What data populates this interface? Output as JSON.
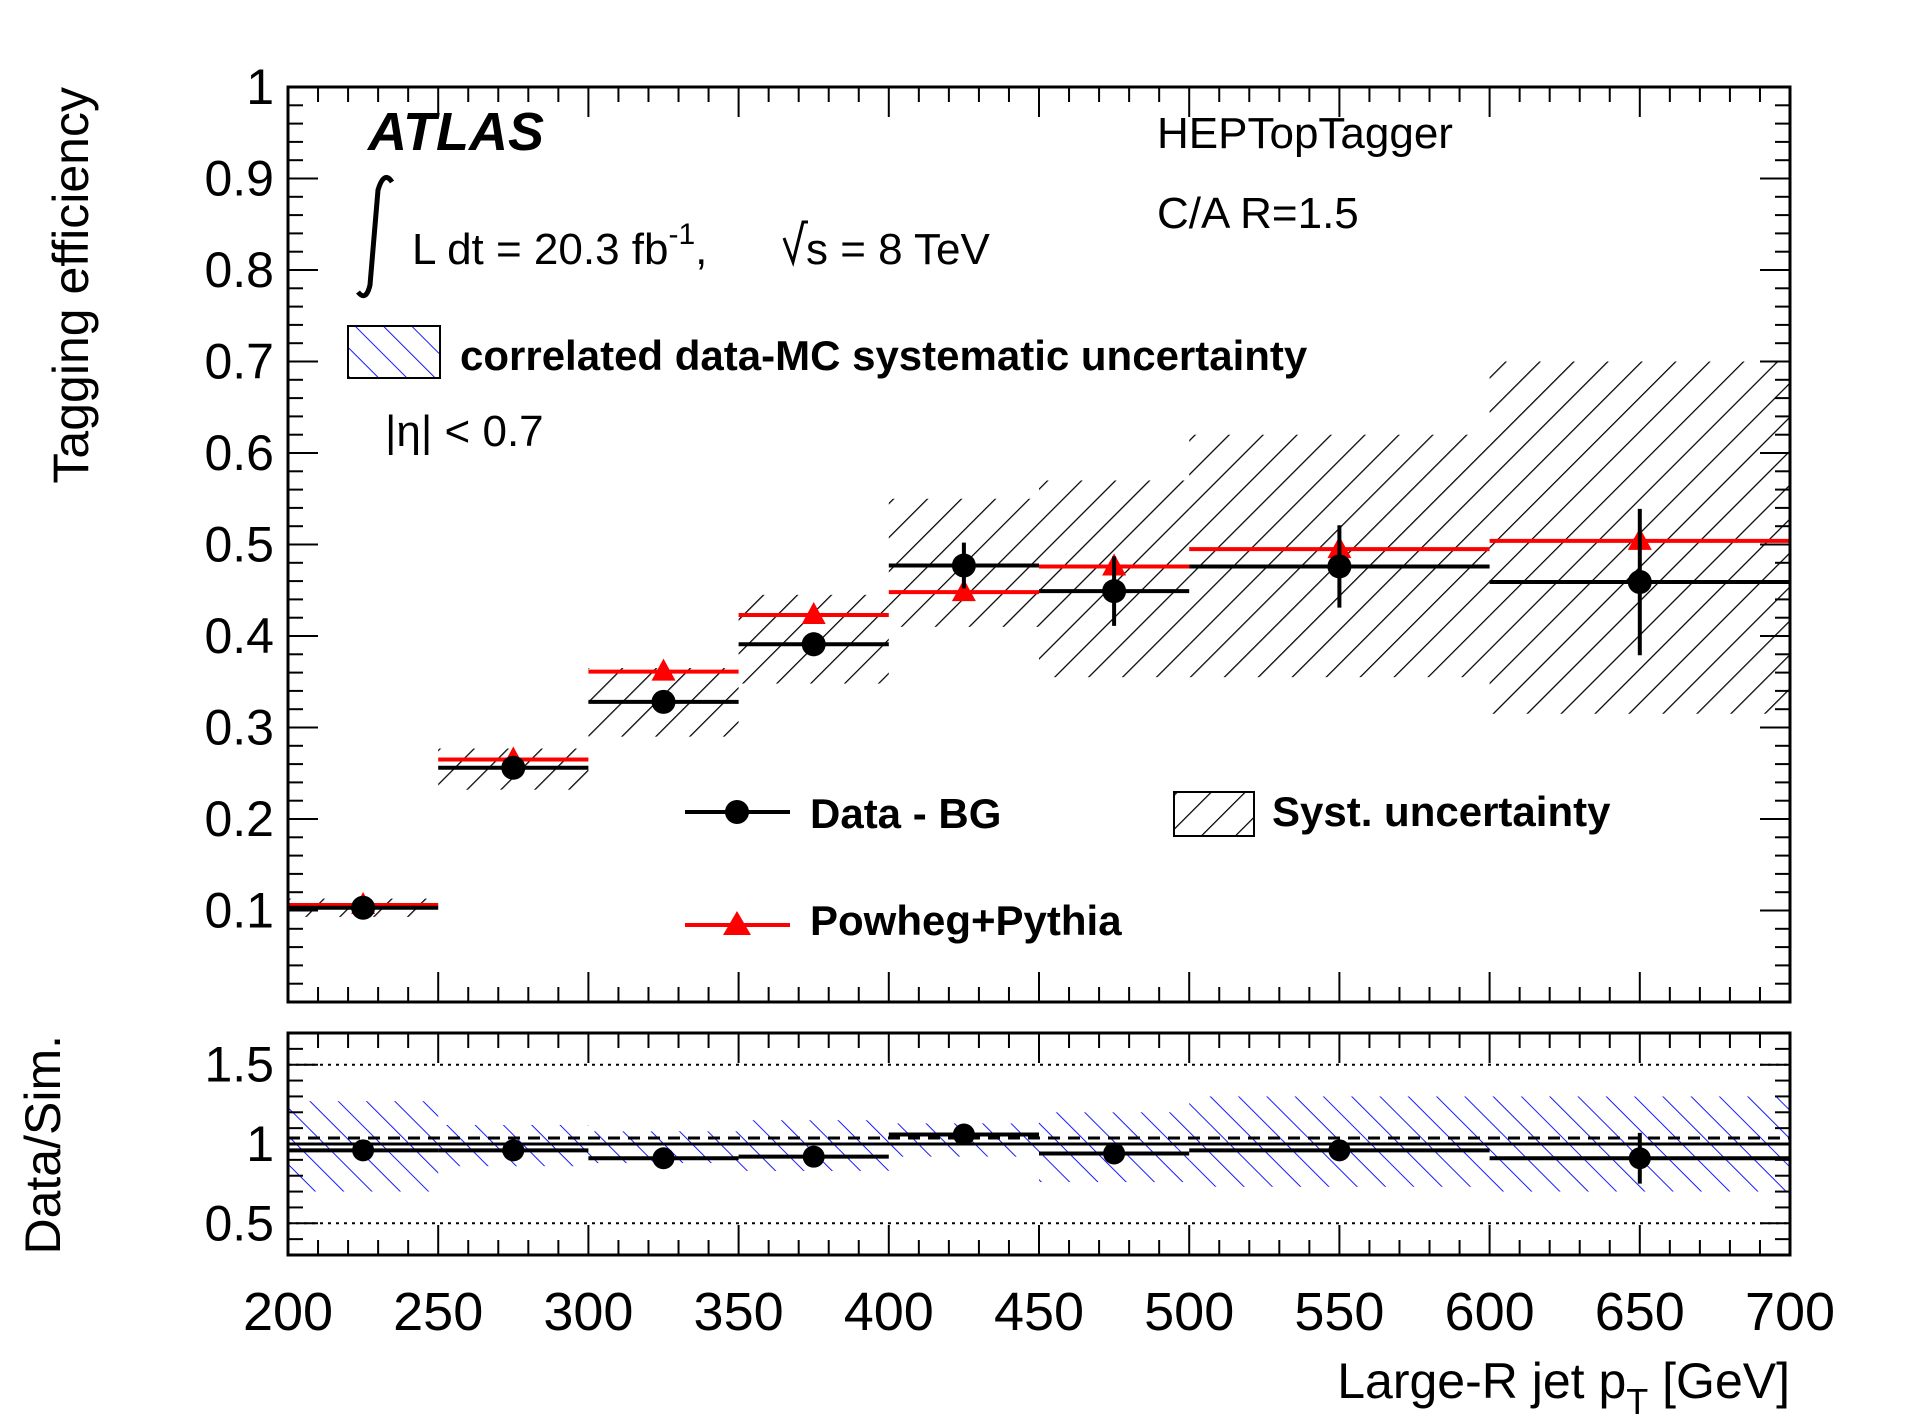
{
  "chart_data": [
    {
      "type": "line",
      "panel": "main",
      "xlabel_main": "Large-R jet p",
      "xlabel_sub": "T",
      "xlabel_unit": " [GeV]",
      "ylabel": "Tagging efficiency",
      "xlim": [
        200,
        700
      ],
      "ylim": [
        0,
        1
      ],
      "x_ticks": [
        "200",
        "250",
        "300",
        "350",
        "400",
        "450",
        "500",
        "550",
        "600",
        "650",
        "700"
      ],
      "y_ticks": [
        "0.1",
        "0.2",
        "0.3",
        "0.4",
        "0.5",
        "0.6",
        "0.7",
        "0.8",
        "0.9",
        "1"
      ],
      "bins": [
        [
          200,
          250
        ],
        [
          250,
          300
        ],
        [
          300,
          350
        ],
        [
          350,
          400
        ],
        [
          400,
          450
        ],
        [
          450,
          500
        ],
        [
          500,
          600
        ],
        [
          600,
          700
        ]
      ],
      "centers": [
        225,
        275,
        325,
        375,
        425,
        475,
        550,
        650
      ],
      "series": [
        {
          "name": "Data - BG",
          "color": "#000000",
          "marker": "circle",
          "values": [
            0.103,
            0.256,
            0.328,
            0.391,
            0.477,
            0.449,
            0.476,
            0.459
          ],
          "stat_err": [
            0.004,
            0.008,
            0.01,
            0.013,
            0.025,
            0.038,
            0.045,
            0.08
          ]
        },
        {
          "name": "Powheg+Pythia",
          "color": "#ff0000",
          "marker": "triangle",
          "values": [
            0.106,
            0.265,
            0.361,
            0.423,
            0.448,
            0.476,
            0.495,
            0.504
          ]
        }
      ],
      "syst_band": {
        "name": "Syst. uncertainty",
        "low": [
          0.093,
          0.232,
          0.29,
          0.348,
          0.41,
          0.355,
          0.355,
          0.315
        ],
        "high": [
          0.113,
          0.277,
          0.365,
          0.445,
          0.55,
          0.57,
          0.62,
          0.7
        ]
      },
      "legend": [
        "Data - BG",
        "Syst. uncertainty",
        "Powheg+Pythia"
      ]
    },
    {
      "type": "line",
      "panel": "ratio",
      "ylabel": "Data/Sim.",
      "xlim": [
        200,
        700
      ],
      "ylim": [
        0.3,
        1.7
      ],
      "y_ticks": [
        "0.5",
        "1",
        "1.5"
      ],
      "reference_lines": [
        0.5,
        1,
        1.5
      ],
      "bins": [
        [
          200,
          250
        ],
        [
          250,
          300
        ],
        [
          300,
          350
        ],
        [
          350,
          400
        ],
        [
          400,
          450
        ],
        [
          450,
          500
        ],
        [
          500,
          600
        ],
        [
          600,
          700
        ]
      ],
      "centers": [
        225,
        275,
        325,
        375,
        425,
        475,
        550,
        650
      ],
      "series": [
        {
          "name": "Data/Sim.",
          "values": [
            0.96,
            0.96,
            0.91,
            0.92,
            1.06,
            0.94,
            0.96,
            0.91
          ],
          "stat_err": [
            0.01,
            0.02,
            0.02,
            0.02,
            0.04,
            0.05,
            0.05,
            0.16
          ]
        }
      ],
      "corr_band": {
        "name": "correlated data-MC systematic uncertainty",
        "low": [
          0.7,
          0.86,
          0.88,
          0.83,
          0.92,
          0.76,
          0.73,
          0.7
        ],
        "high": [
          1.27,
          1.12,
          1.08,
          1.15,
          1.13,
          1.2,
          1.3,
          1.3
        ]
      }
    }
  ],
  "annotations": {
    "experiment": "ATLAS",
    "lumi_prefix": "L dt = 20.3 fb",
    "lumi_exp": "-1",
    "lumi_sep": ",",
    "sqrt_s": "s = 8 TeV",
    "tagger": "HEPTopTagger",
    "jet_def": "C/A R=1.5",
    "eta_cut": "|η| < 0.7",
    "corr_legend": "correlated data-MC systematic uncertainty"
  }
}
